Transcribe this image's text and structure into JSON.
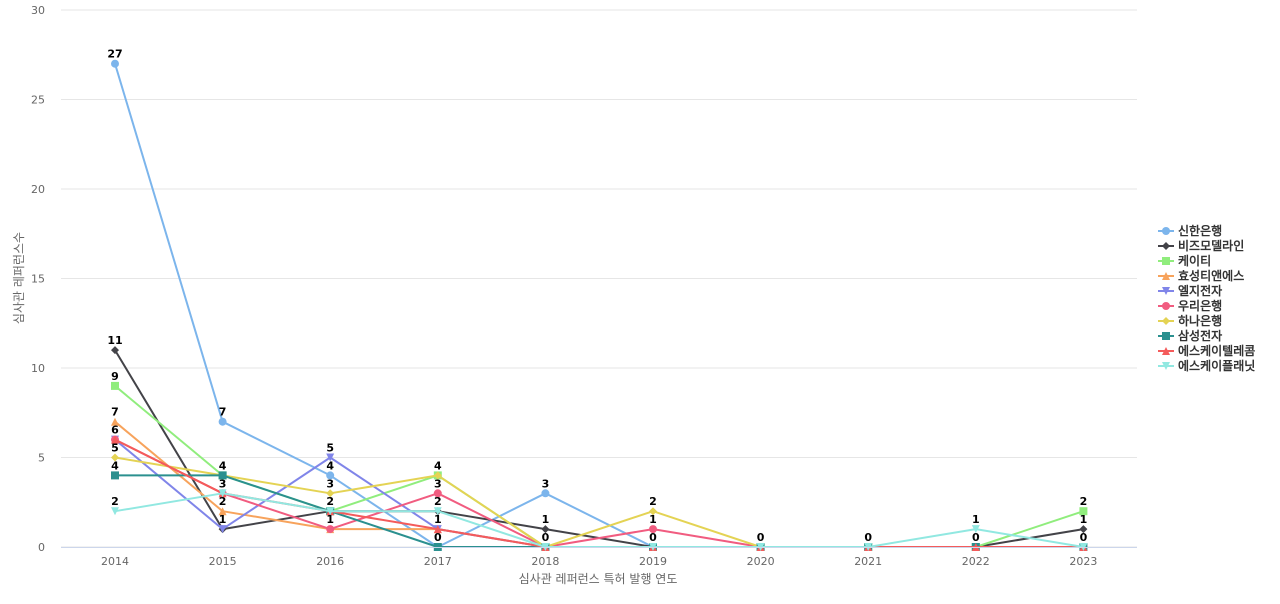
{
  "chart_data": {
    "type": "line",
    "title": "",
    "xlabel": "심사관 레퍼런스 특허 발행 연도",
    "ylabel": "심사관 레퍼런스수",
    "categories": [
      "2014",
      "2015",
      "2016",
      "2017",
      "2018",
      "2019",
      "2020",
      "2021",
      "2022",
      "2023"
    ],
    "ylim": [
      0,
      30
    ],
    "yticks": [
      0,
      5,
      10,
      15,
      20,
      25,
      30
    ],
    "grid": true,
    "legend_position": "right",
    "series": [
      {
        "name": "신한은행",
        "color": "#7cb5ec",
        "marker": "circle",
        "values": [
          27,
          7,
          4,
          0,
          3,
          0,
          0,
          0,
          0,
          0
        ]
      },
      {
        "name": "비즈모델라인",
        "color": "#434348",
        "marker": "diamond",
        "values": [
          11,
          1,
          2,
          2,
          1,
          0,
          0,
          0,
          0,
          1
        ]
      },
      {
        "name": "케이티",
        "color": "#90ed7d",
        "marker": "square",
        "values": [
          9,
          4,
          2,
          4,
          0,
          0,
          0,
          0,
          0,
          2
        ]
      },
      {
        "name": "효성티앤에스",
        "color": "#f7a35c",
        "marker": "triangle",
        "values": [
          7,
          2,
          1,
          1,
          0,
          0,
          0,
          0,
          0,
          0
        ]
      },
      {
        "name": "엘지전자",
        "color": "#8085e9",
        "marker": "triangle-down",
        "values": [
          6,
          1,
          5,
          1,
          0,
          0,
          0,
          0,
          0,
          0
        ]
      },
      {
        "name": "우리은행",
        "color": "#f15c80",
        "marker": "circle",
        "values": [
          6,
          3,
          1,
          3,
          0,
          1,
          0,
          0,
          0,
          0
        ]
      },
      {
        "name": "하나은행",
        "color": "#e4d354",
        "marker": "diamond",
        "values": [
          5,
          4,
          3,
          4,
          0,
          2,
          0,
          0,
          0,
          0
        ]
      },
      {
        "name": "삼성전자",
        "color": "#2b908f",
        "marker": "square",
        "values": [
          4,
          4,
          2,
          0,
          0,
          0,
          0,
          0,
          0,
          0
        ]
      },
      {
        "name": "에스케이텔레콤",
        "color": "#f45b5b",
        "marker": "triangle",
        "values": [
          6,
          3,
          2,
          1,
          0,
          0,
          0,
          0,
          0,
          0
        ]
      },
      {
        "name": "에스케이플래닛",
        "color": "#91e8e1",
        "marker": "triangle-down",
        "values": [
          2,
          3,
          2,
          2,
          0,
          0,
          0,
          0,
          1,
          0
        ]
      }
    ],
    "data_labels": [
      {
        "x": "2014",
        "value": 27
      },
      {
        "x": "2014",
        "value": 11
      },
      {
        "x": "2014",
        "value": 9
      },
      {
        "x": "2014",
        "value": 7
      },
      {
        "x": "2014",
        "value": 6
      },
      {
        "x": "2014",
        "value": 5
      },
      {
        "x": "2014",
        "value": 4
      },
      {
        "x": "2014",
        "value": 2
      },
      {
        "x": "2015",
        "value": 7
      },
      {
        "x": "2015",
        "value": 4
      },
      {
        "x": "2015",
        "value": 3
      },
      {
        "x": "2015",
        "value": 2
      },
      {
        "x": "2015",
        "value": 1
      },
      {
        "x": "2016",
        "value": 5
      },
      {
        "x": "2016",
        "value": 4
      },
      {
        "x": "2016",
        "value": 3
      },
      {
        "x": "2016",
        "value": 2
      },
      {
        "x": "2016",
        "value": 1
      },
      {
        "x": "2017",
        "value": 4
      },
      {
        "x": "2017",
        "value": 3
      },
      {
        "x": "2017",
        "value": 2
      },
      {
        "x": "2017",
        "value": 1
      },
      {
        "x": "2017",
        "value": 0
      },
      {
        "x": "2018",
        "value": 3
      },
      {
        "x": "2018",
        "value": 1
      },
      {
        "x": "2018",
        "value": 0
      },
      {
        "x": "2019",
        "value": 2
      },
      {
        "x": "2019",
        "value": 1
      },
      {
        "x": "2019",
        "value": 0
      },
      {
        "x": "2020",
        "value": 0
      },
      {
        "x": "2021",
        "value": 0
      },
      {
        "x": "2022",
        "value": 1
      },
      {
        "x": "2022",
        "value": 0
      },
      {
        "x": "2023",
        "value": 2
      },
      {
        "x": "2023",
        "value": 1
      },
      {
        "x": "2023",
        "value": 0
      }
    ]
  }
}
